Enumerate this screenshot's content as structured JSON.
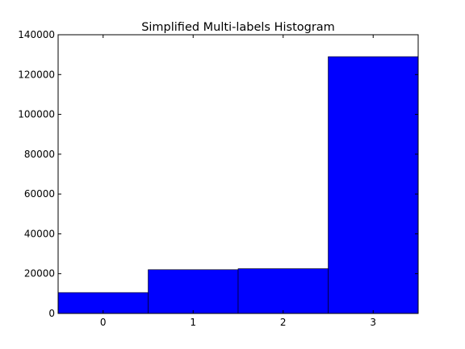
{
  "chart_data": {
    "type": "bar",
    "title": "Simplified Multi-labels Histogram",
    "xlabel": "",
    "ylabel": "",
    "categories": [
      "0",
      "1",
      "2",
      "3"
    ],
    "values": [
      10500,
      22000,
      22500,
      129000
    ],
    "xlim": [
      -0.5,
      3.5
    ],
    "ylim": [
      0,
      140000
    ],
    "yticks": [
      0,
      20000,
      40000,
      60000,
      80000,
      100000,
      120000,
      140000
    ],
    "ytick_labels": [
      "0",
      "20000",
      "40000",
      "60000",
      "80000",
      "100000",
      "120000",
      "140000"
    ],
    "grid": false,
    "legend": "none",
    "bar_color": "#0000ff"
  }
}
